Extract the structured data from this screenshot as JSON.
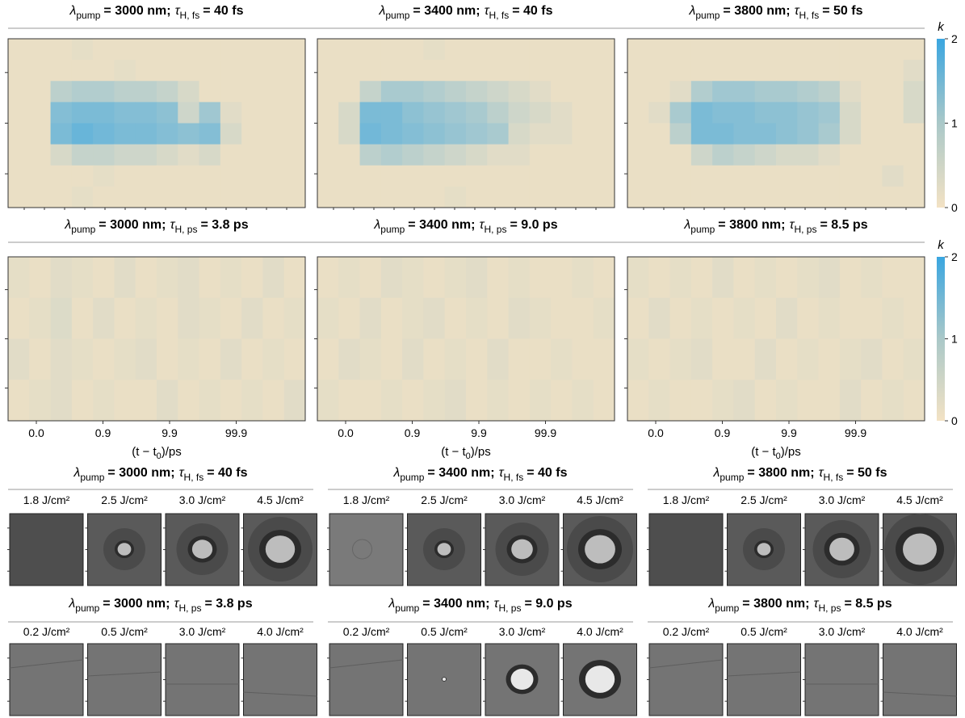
{
  "heatmap_rows": [
    {
      "colorbar": {
        "label": "k",
        "ylim": [
          0,
          2
        ],
        "yticks": [
          0,
          1,
          2
        ]
      },
      "panels": [
        {
          "title": {
            "lambda": "λ",
            "lambda_sub": "pump",
            "lambda_value": "= 3000 nm;",
            "tau": "τ",
            "tau_sub": "H, fs",
            "tau_value": "= 40 fs"
          },
          "k": [
            [
              0.1,
              0.1,
              0.1,
              0.15,
              0.1,
              0.1,
              0.1,
              0.1,
              0.1,
              0.1,
              0.1,
              0.1,
              0.1,
              0.1
            ],
            [
              0.1,
              0.1,
              0.1,
              0.1,
              0.1,
              0.15,
              0.1,
              0.1,
              0.1,
              0.1,
              0.1,
              0.1,
              0.1,
              0.1
            ],
            [
              0.1,
              0.1,
              0.6,
              0.7,
              0.7,
              0.6,
              0.6,
              0.5,
              0.3,
              0.1,
              0.1,
              0.1,
              0.1,
              0.1
            ],
            [
              0.1,
              0.1,
              1.2,
              1.3,
              1.3,
              1.2,
              1.2,
              1.1,
              0.4,
              0.9,
              0.2,
              0.1,
              0.1,
              0.1
            ],
            [
              0.1,
              0.1,
              1.3,
              1.5,
              1.4,
              1.3,
              1.3,
              1.2,
              1.1,
              1.2,
              0.3,
              0.1,
              0.1,
              0.1
            ],
            [
              0.1,
              0.1,
              0.3,
              0.5,
              0.5,
              0.4,
              0.4,
              0.3,
              0.2,
              0.3,
              0.1,
              0.1,
              0.1,
              0.1
            ],
            [
              0.1,
              0.1,
              0.1,
              0.1,
              0.15,
              0.1,
              0.1,
              0.1,
              0.1,
              0.1,
              0.1,
              0.1,
              0.1,
              0.1
            ],
            [
              0.1,
              0.1,
              0.1,
              0.15,
              0.1,
              0.1,
              0.1,
              0.1,
              0.1,
              0.1,
              0.1,
              0.1,
              0.1,
              0.1
            ]
          ]
        },
        {
          "title": {
            "lambda": "λ",
            "lambda_sub": "pump",
            "lambda_value": "= 3400 nm;",
            "tau": "τ",
            "tau_sub": "H, fs",
            "tau_value": "= 40 fs"
          },
          "k": [
            [
              0.1,
              0.1,
              0.1,
              0.1,
              0.1,
              0.15,
              0.1,
              0.1,
              0.1,
              0.1,
              0.1,
              0.1,
              0.1,
              0.1
            ],
            [
              0.1,
              0.1,
              0.1,
              0.1,
              0.1,
              0.1,
              0.1,
              0.1,
              0.1,
              0.1,
              0.1,
              0.1,
              0.1,
              0.1
            ],
            [
              0.1,
              0.1,
              0.5,
              0.8,
              0.8,
              0.7,
              0.6,
              0.5,
              0.4,
              0.3,
              0.2,
              0.1,
              0.1,
              0.1
            ],
            [
              0.1,
              0.3,
              1.3,
              1.3,
              1.1,
              1.0,
              0.9,
              0.8,
              0.6,
              0.4,
              0.3,
              0.2,
              0.1,
              0.1
            ],
            [
              0.1,
              0.3,
              1.4,
              1.3,
              1.2,
              1.1,
              1.0,
              0.9,
              0.8,
              0.3,
              0.2,
              0.2,
              0.1,
              0.1
            ],
            [
              0.1,
              0.1,
              0.6,
              0.7,
              0.6,
              0.5,
              0.4,
              0.3,
              0.2,
              0.2,
              0.1,
              0.1,
              0.1,
              0.1
            ],
            [
              0.1,
              0.1,
              0.1,
              0.1,
              0.1,
              0.1,
              0.1,
              0.1,
              0.1,
              0.1,
              0.1,
              0.1,
              0.1,
              0.1
            ],
            [
              0.1,
              0.1,
              0.1,
              0.1,
              0.1,
              0.1,
              0.15,
              0.1,
              0.1,
              0.1,
              0.1,
              0.1,
              0.1,
              0.1
            ]
          ]
        },
        {
          "title": {
            "lambda": "λ",
            "lambda_sub": "pump",
            "lambda_value": "= 3800 nm;",
            "tau": "τ",
            "tau_sub": "H, fs",
            "tau_value": "= 50 fs"
          },
          "k": [
            [
              0.1,
              0.1,
              0.1,
              0.1,
              0.1,
              0.1,
              0.1,
              0.1,
              0.1,
              0.1,
              0.1,
              0.1,
              0.1,
              0.1
            ],
            [
              0.1,
              0.1,
              0.1,
              0.1,
              0.1,
              0.1,
              0.1,
              0.1,
              0.1,
              0.1,
              0.1,
              0.1,
              0.1,
              0.2
            ],
            [
              0.1,
              0.1,
              0.2,
              0.7,
              0.9,
              0.9,
              0.8,
              0.8,
              0.7,
              0.6,
              0.2,
              0.1,
              0.1,
              0.3
            ],
            [
              0.1,
              0.2,
              0.8,
              1.3,
              1.2,
              1.2,
              1.1,
              1.1,
              1.0,
              0.9,
              0.3,
              0.1,
              0.1,
              0.3
            ],
            [
              0.1,
              0.1,
              0.6,
              1.3,
              1.3,
              1.2,
              1.2,
              1.1,
              1.0,
              0.8,
              0.3,
              0.1,
              0.1,
              0.1
            ],
            [
              0.1,
              0.1,
              0.1,
              0.4,
              0.6,
              0.5,
              0.4,
              0.3,
              0.3,
              0.2,
              0.1,
              0.1,
              0.1,
              0.1
            ],
            [
              0.1,
              0.1,
              0.1,
              0.1,
              0.1,
              0.1,
              0.1,
              0.1,
              0.1,
              0.1,
              0.1,
              0.1,
              0.2,
              0.1
            ],
            [
              0.1,
              0.1,
              0.1,
              0.1,
              0.1,
              0.1,
              0.1,
              0.1,
              0.1,
              0.1,
              0.1,
              0.1,
              0.1,
              0.1
            ]
          ]
        }
      ]
    },
    {
      "colorbar": {
        "label": "k",
        "ylim": [
          0,
          2
        ],
        "yticks": [
          0,
          1,
          2
        ]
      },
      "xticks": [
        "0.0",
        "0.9",
        "9.9",
        "99.9"
      ],
      "xlabel": {
        "pre": "(t − t",
        "sub": "0",
        "post": ")/ps"
      },
      "panels": [
        {
          "title": {
            "lambda": "λ",
            "lambda_sub": "pump",
            "lambda_value": "= 3000 nm;",
            "tau": "τ",
            "tau_sub": "H, ps",
            "tau_value": "= 3.8 ps"
          },
          "k": [
            [
              0.15,
              0.1,
              0.2,
              0.15,
              0.1,
              0.2,
              0.1,
              0.15,
              0.2,
              0.1,
              0.15,
              0.1,
              0.2,
              0.1
            ],
            [
              0.1,
              0.15,
              0.25,
              0.1,
              0.2,
              0.1,
              0.15,
              0.1,
              0.2,
              0.15,
              0.1,
              0.2,
              0.1,
              0.15
            ],
            [
              0.2,
              0.1,
              0.2,
              0.15,
              0.1,
              0.15,
              0.2,
              0.1,
              0.15,
              0.1,
              0.2,
              0.1,
              0.15,
              0.1
            ],
            [
              0.1,
              0.15,
              0.2,
              0.1,
              0.15,
              0.1,
              0.1,
              0.2,
              0.1,
              0.15,
              0.1,
              0.15,
              0.1,
              0.2
            ]
          ]
        },
        {
          "title": {
            "lambda": "λ",
            "lambda_sub": "pump",
            "lambda_value": "= 3400 nm;",
            "tau": "τ",
            "tau_sub": "H, ps",
            "tau_value": "= 9.0 ps"
          },
          "k": [
            [
              0.1,
              0.15,
              0.1,
              0.2,
              0.15,
              0.1,
              0.15,
              0.2,
              0.1,
              0.15,
              0.1,
              0.1,
              0.15,
              0.1
            ],
            [
              0.15,
              0.1,
              0.2,
              0.1,
              0.15,
              0.2,
              0.1,
              0.15,
              0.1,
              0.2,
              0.15,
              0.1,
              0.1,
              0.15
            ],
            [
              0.1,
              0.2,
              0.15,
              0.1,
              0.2,
              0.1,
              0.15,
              0.1,
              0.2,
              0.1,
              0.1,
              0.15,
              0.1,
              0.1
            ],
            [
              0.15,
              0.1,
              0.1,
              0.15,
              0.1,
              0.15,
              0.2,
              0.1,
              0.15,
              0.1,
              0.15,
              0.1,
              0.15,
              0.1
            ]
          ]
        },
        {
          "title": {
            "lambda": "λ",
            "lambda_sub": "pump",
            "lambda_value": "= 3800 nm;",
            "tau": "τ",
            "tau_sub": "H, ps",
            "tau_value": "= 8.5 ps"
          },
          "k": [
            [
              0.15,
              0.1,
              0.15,
              0.1,
              0.2,
              0.1,
              0.15,
              0.1,
              0.15,
              0.2,
              0.1,
              0.15,
              0.1,
              0.1
            ],
            [
              0.1,
              0.2,
              0.1,
              0.15,
              0.1,
              0.15,
              0.1,
              0.2,
              0.1,
              0.15,
              0.1,
              0.1,
              0.15,
              0.1
            ],
            [
              0.15,
              0.1,
              0.15,
              0.2,
              0.1,
              0.1,
              0.2,
              0.1,
              0.15,
              0.1,
              0.15,
              0.2,
              0.1,
              0.15
            ],
            [
              0.1,
              0.15,
              0.1,
              0.1,
              0.15,
              0.2,
              0.1,
              0.15,
              0.1,
              0.1,
              0.2,
              0.1,
              0.15,
              0.1
            ]
          ]
        }
      ]
    }
  ],
  "image_rows": [
    {
      "groups": [
        {
          "title": {
            "lambda": "λ",
            "lambda_sub": "pump",
            "lambda_value": "= 3000 nm;",
            "tau": "τ",
            "tau_sub": "H, fs",
            "tau_value": "= 40 fs"
          },
          "fluences": [
            "1.8 J/cm²",
            "2.5 J/cm²",
            "3.0 J/cm²",
            "4.5 J/cm²"
          ]
        },
        {
          "title": {
            "lambda": "λ",
            "lambda_sub": "pump",
            "lambda_value": "= 3400 nm;",
            "tau": "τ",
            "tau_sub": "H, fs",
            "tau_value": "= 40 fs"
          },
          "fluences": [
            "1.8 J/cm²",
            "2.5 J/cm²",
            "3.0 J/cm²",
            "4.5 J/cm²"
          ]
        },
        {
          "title": {
            "lambda": "λ",
            "lambda_sub": "pump",
            "lambda_value": "= 3800 nm;",
            "tau": "τ",
            "tau_sub": "H, fs",
            "tau_value": "= 50 fs"
          },
          "fluences": [
            "1.8 J/cm²",
            "2.5 J/cm²",
            "3.0 J/cm²",
            "4.5 J/cm²"
          ]
        }
      ]
    },
    {
      "groups": [
        {
          "title": {
            "lambda": "λ",
            "lambda_sub": "pump",
            "lambda_value": "= 3000 nm;",
            "tau": "τ",
            "tau_sub": "H, ps",
            "tau_value": "= 3.8 ps"
          },
          "fluences": [
            "0.2 J/cm²",
            "0.5 J/cm²",
            "3.0 J/cm²",
            "4.0 J/cm²"
          ]
        },
        {
          "title": {
            "lambda": "λ",
            "lambda_sub": "pump",
            "lambda_value": "= 3400 nm;",
            "tau": "τ",
            "tau_sub": "H, ps",
            "tau_value": "= 9.0 ps"
          },
          "fluences": [
            "0.2 J/cm²",
            "0.5 J/cm²",
            "3.0 J/cm²",
            "4.0 J/cm²"
          ]
        },
        {
          "title": {
            "lambda": "λ",
            "lambda_sub": "pump",
            "lambda_value": "= 3800 nm;",
            "tau": "τ",
            "tau_sub": "H, ps",
            "tau_value": "= 8.5 ps"
          },
          "fluences": [
            "0.2 J/cm²",
            "0.5 J/cm²",
            "3.0 J/cm²",
            "4.0 J/cm²"
          ]
        }
      ]
    }
  ]
}
